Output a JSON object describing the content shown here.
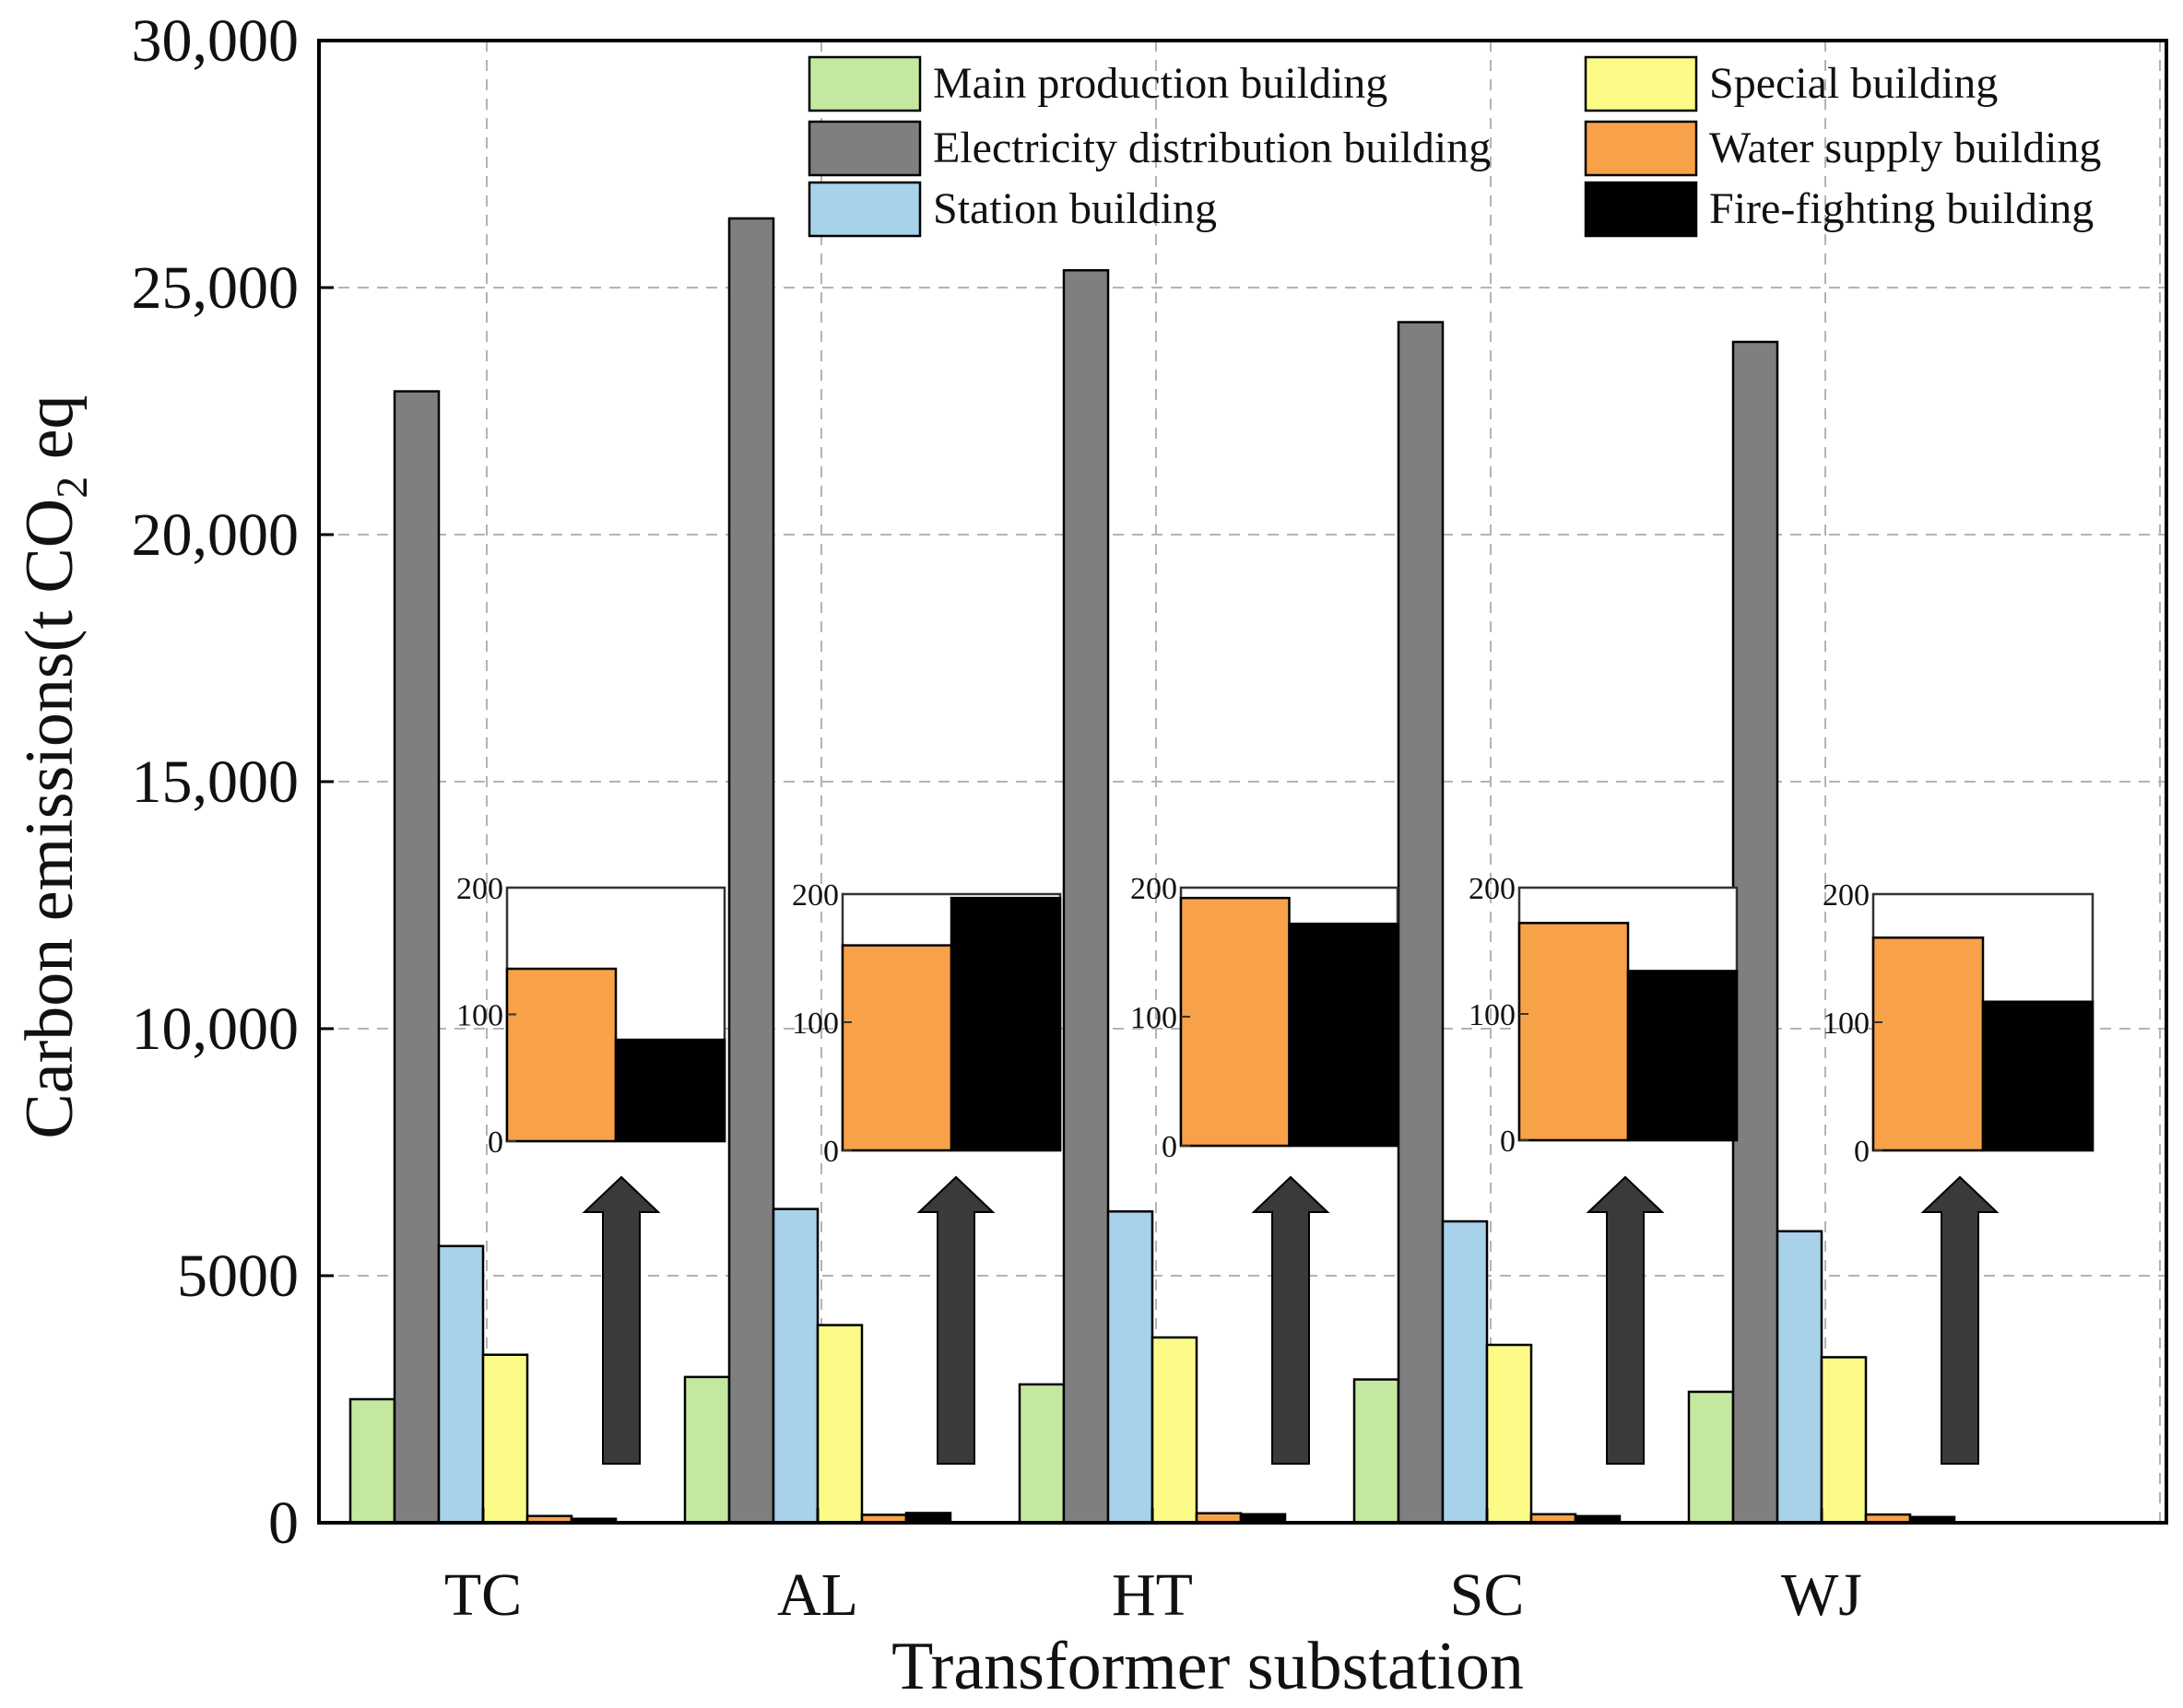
{
  "chart_data": {
    "type": "bar",
    "xlabel": "Transformer substation",
    "ylabel": {
      "main": "Carbon emissions(t CO",
      "subscript": "2",
      "suffix": " eq"
    },
    "ylim": [
      0,
      30000
    ],
    "yticks": [
      0,
      5000,
      10000,
      15000,
      20000,
      25000,
      30000
    ],
    "ytick_labels": [
      "0",
      "5000",
      "10,000",
      "15,000",
      "20,000",
      "25,000",
      "30,000"
    ],
    "grid": true,
    "legend_position": "top-right",
    "categories": [
      "TC",
      "AL",
      "HT",
      "SC",
      "WJ"
    ],
    "series": [
      {
        "name": "Main production building",
        "color": "#c5e8a0",
        "values": [
          2500,
          2950,
          2800,
          2900,
          2650
        ]
      },
      {
        "name": "Electricity distribution building",
        "color": "#7f7f7f",
        "values": [
          22900,
          26400,
          25350,
          24300,
          23900
        ]
      },
      {
        "name": "Station building",
        "color": "#a8d1ea",
        "values": [
          5600,
          6350,
          6300,
          6100,
          5900
        ]
      },
      {
        "name": "Special building",
        "color": "#fdfb88",
        "values": [
          3400,
          4000,
          3750,
          3600,
          3350
        ]
      },
      {
        "name": "Water supply building",
        "color": "#f7a248",
        "values": [
          136,
          160,
          192,
          172,
          166
        ]
      },
      {
        "name": "Fire-fighting building",
        "color": "#000000",
        "values": [
          80,
          197,
          172,
          134,
          116
        ]
      }
    ],
    "inset": {
      "ylim": [
        0,
        200
      ],
      "yticks": [
        0,
        100,
        200
      ],
      "ytick_labels": [
        "0",
        "100",
        "200"
      ],
      "series_shown": [
        "Water supply building",
        "Fire-fighting building"
      ]
    },
    "arrow_color": "#3a3a3a"
  }
}
